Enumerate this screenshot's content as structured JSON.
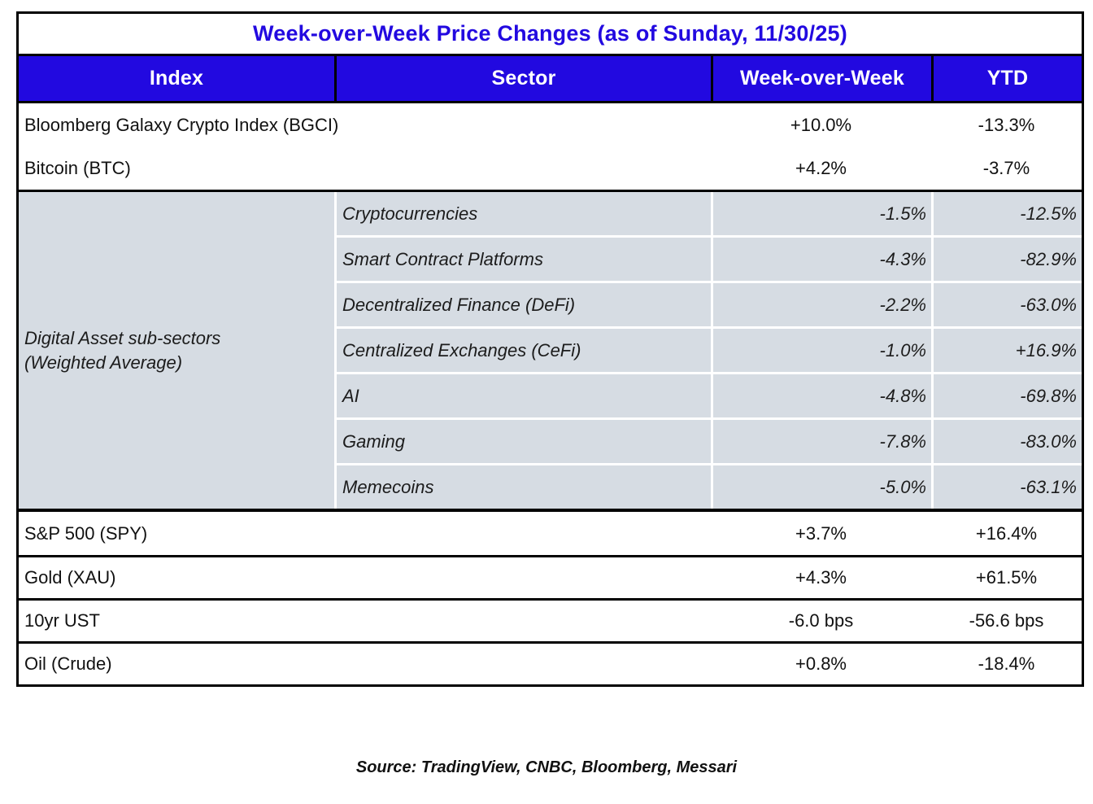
{
  "title": "Week-over-Week Price Changes (as of Sunday, 11/30/25)",
  "columns": {
    "index": "Index",
    "sector": "Sector",
    "wow": "Week-over-Week",
    "ytd": "YTD"
  },
  "top_rows": [
    {
      "index": "Bloomberg Galaxy Crypto Index (BGCI)",
      "wow": "+10.0%",
      "ytd": "-13.3%"
    },
    {
      "index": "Bitcoin (BTC)",
      "wow": "+4.2%",
      "ytd": "-3.7%"
    }
  ],
  "subsector_group": {
    "index_label_line1": "Digital Asset sub-sectors",
    "index_label_line2": "(Weighted Average)",
    "rows": [
      {
        "sector": "Cryptocurrencies",
        "wow": "-1.5%",
        "ytd": "-12.5%"
      },
      {
        "sector": "Smart Contract Platforms",
        "wow": "-4.3%",
        "ytd": "-82.9%"
      },
      {
        "sector": "Decentralized Finance (DeFi)",
        "wow": "-2.2%",
        "ytd": "-63.0%"
      },
      {
        "sector": "Centralized Exchanges (CeFi)",
        "wow": "-1.0%",
        "ytd": "+16.9%"
      },
      {
        "sector": "AI",
        "wow": "-4.8%",
        "ytd": "-69.8%"
      },
      {
        "sector": "Gaming",
        "wow": "-7.8%",
        "ytd": "-83.0%"
      },
      {
        "sector": "Memecoins",
        "wow": "-5.0%",
        "ytd": "-63.1%"
      }
    ]
  },
  "bottom_rows": [
    {
      "index": "S&P 500 (SPY)",
      "wow": "+3.7%",
      "ytd": "+16.4%"
    },
    {
      "index": "Gold (XAU)",
      "wow": "+4.3%",
      "ytd": "+61.5%"
    },
    {
      "index": "10yr UST",
      "wow": "-6.0 bps",
      "ytd": "-56.6 bps"
    },
    {
      "index": "Oil (Crude)",
      "wow": "+0.8%",
      "ytd": "-18.4%"
    }
  ],
  "source": "Source: TradingView, CNBC, Bloomberg, Messari",
  "colors": {
    "header_bg": "#2209E0",
    "header_text": "#FFFFFF",
    "title_text": "#2209E0",
    "subsector_bg": "#D6DCE3",
    "border": "#000000",
    "body_text": "#111111"
  },
  "chart_data": {
    "type": "table",
    "title": "Week-over-Week Price Changes (as of Sunday, 11/30/25)",
    "columns": [
      "Index",
      "Sector",
      "Week-over-Week",
      "YTD"
    ],
    "rows": [
      [
        "Bloomberg Galaxy Crypto Index (BGCI)",
        "",
        "+10.0%",
        "-13.3%"
      ],
      [
        "Bitcoin (BTC)",
        "",
        "+4.2%",
        "-3.7%"
      ],
      [
        "Digital Asset sub-sectors (Weighted Average)",
        "Cryptocurrencies",
        "-1.5%",
        "-12.5%"
      ],
      [
        "Digital Asset sub-sectors (Weighted Average)",
        "Smart Contract Platforms",
        "-4.3%",
        "-82.9%"
      ],
      [
        "Digital Asset sub-sectors (Weighted Average)",
        "Decentralized Finance (DeFi)",
        "-2.2%",
        "-63.0%"
      ],
      [
        "Digital Asset sub-sectors (Weighted Average)",
        "Centralized Exchanges (CeFi)",
        "-1.0%",
        "+16.9%"
      ],
      [
        "Digital Asset sub-sectors (Weighted Average)",
        "AI",
        "-4.8%",
        "-69.8%"
      ],
      [
        "Digital Asset sub-sectors (Weighted Average)",
        "Gaming",
        "-7.8%",
        "-83.0%"
      ],
      [
        "Digital Asset sub-sectors (Weighted Average)",
        "Memecoins",
        "-5.0%",
        "-63.1%"
      ],
      [
        "S&P 500 (SPY)",
        "",
        "+3.7%",
        "+16.4%"
      ],
      [
        "Gold (XAU)",
        "",
        "+4.3%",
        "+61.5%"
      ],
      [
        "10yr UST",
        "",
        "-6.0 bps",
        "-56.6 bps"
      ],
      [
        "Oil (Crude)",
        "",
        "+0.8%",
        "-18.4%"
      ]
    ],
    "caption": "Source: TradingView, CNBC, Bloomberg, Messari"
  }
}
